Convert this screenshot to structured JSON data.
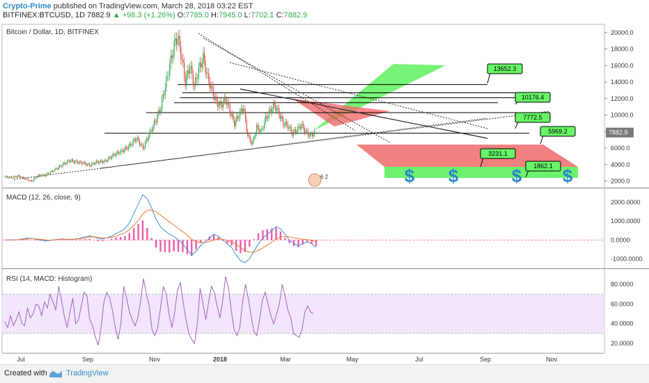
{
  "header": {
    "author": "Crypto-Prime",
    "published": "published on TradingView.com, March 28, 2018 03:22 EST",
    "symbol": "BITFINEX:BTCUSD, 1D",
    "last": "7882.9",
    "change": "+98.3 (+1.26%)",
    "open_label": "O:",
    "open": "7785.0",
    "high_label": "H:",
    "high": "7945.0",
    "low_label": "L:",
    "low": "7702.1",
    "close_label": "C:",
    "close": "7882.9"
  },
  "footer": {
    "created_with": "Created with",
    "brand": "TradingView"
  },
  "colors": {
    "up": "#2eaa4f",
    "down": "#e0463b",
    "macd": "#3f8fd8",
    "signal": "#ee7a2b",
    "hist": "#ee5aa6",
    "rsi": "#a45fbf",
    "rsi_band": "#f1e6fb",
    "green_zone": "#5ef05e",
    "red_zone": "#f06a6a"
  },
  "chart_data": [
    {
      "type": "candlestick",
      "title": "Bitcoin / Dollar, 1D, BITFINEX",
      "x_ticks": [
        "Jul",
        "Sep",
        "Nov",
        "2018",
        "Mar",
        "May",
        "Jul",
        "Sep",
        "Nov"
      ],
      "y_ticks": [
        "20000.0",
        "18000.0",
        "16000.0",
        "14000.0",
        "12000.0",
        "10000.0",
        "8000.0",
        "6000.0",
        "4000.0",
        "2000.0"
      ],
      "ylim": [
        1200,
        21000
      ],
      "last_price_label": "7882.9",
      "price_points": [
        [
          0,
          2500
        ],
        [
          6,
          2450
        ],
        [
          12,
          2600
        ],
        [
          18,
          2300
        ],
        [
          24,
          1950
        ],
        [
          30,
          2700
        ],
        [
          36,
          2700
        ],
        [
          44,
          3300
        ],
        [
          52,
          4000
        ],
        [
          58,
          4500
        ],
        [
          64,
          4300
        ],
        [
          70,
          4200
        ],
        [
          76,
          3900
        ],
        [
          82,
          4300
        ],
        [
          90,
          4400
        ],
        [
          98,
          5200
        ],
        [
          106,
          5700
        ],
        [
          112,
          6300
        ],
        [
          118,
          7200
        ],
        [
          124,
          6000
        ],
        [
          130,
          7800
        ],
        [
          136,
          9500
        ],
        [
          140,
          11000
        ],
        [
          144,
          13500
        ],
        [
          148,
          16000
        ],
        [
          152,
          18500
        ],
        [
          155,
          19500
        ],
        [
          158,
          17500
        ],
        [
          162,
          14000
        ],
        [
          166,
          16000
        ],
        [
          170,
          13500
        ],
        [
          174,
          15500
        ],
        [
          178,
          17000
        ],
        [
          182,
          14500
        ],
        [
          186,
          13000
        ],
        [
          190,
          11500
        ],
        [
          194,
          11200
        ],
        [
          198,
          12000
        ],
        [
          202,
          10500
        ],
        [
          206,
          9000
        ],
        [
          210,
          10000
        ],
        [
          214,
          11000
        ],
        [
          218,
          7500
        ],
        [
          222,
          6500
        ],
        [
          226,
          8500
        ],
        [
          230,
          8000
        ],
        [
          234,
          9500
        ],
        [
          238,
          10500
        ],
        [
          242,
          11200
        ],
        [
          246,
          10200
        ],
        [
          250,
          9000
        ],
        [
          254,
          8700
        ],
        [
          258,
          7800
        ],
        [
          262,
          8200
        ],
        [
          266,
          8800
        ],
        [
          270,
          8000
        ],
        [
          274,
          7500
        ],
        [
          278,
          7882.9
        ]
      ],
      "resistance_lines": [
        {
          "label": "13652.3",
          "value": 13652.3
        },
        {
          "label": "10176.4",
          "value": 10176.4
        },
        {
          "label": "7772.5",
          "value": 7772.5
        },
        {
          "label": "5969.2",
          "value": 5969.2
        },
        {
          "label": "3231.1",
          "value": 3231.1
        },
        {
          "label": "1862.1",
          "value": 1862.1
        }
      ],
      "horizontal_levels": [
        13700,
        12700,
        12100,
        11500,
        10300,
        7800
      ],
      "annotations": [
        "$",
        "$",
        "$",
        "$"
      ],
      "badge": "6 2"
    },
    {
      "type": "line",
      "title": "MACD (12, 26, close, 9)",
      "y_ticks": [
        "2000.0000",
        "1000.0000",
        "0.0000",
        "-1000.0000"
      ],
      "ylim": [
        -1500,
        2700
      ],
      "series": [
        {
          "values": [
            0,
            0,
            0,
            20,
            60,
            100,
            80,
            40,
            0,
            -50,
            -30,
            10,
            40,
            60,
            30,
            20,
            60,
            100,
            160,
            220,
            160,
            80,
            60,
            120,
            200,
            350,
            450,
            600,
            900,
            1400,
            1900,
            2400,
            2200,
            1700,
            1100,
            700,
            500,
            300,
            200,
            0,
            -200,
            -500,
            -800,
            -600,
            -300,
            -100,
            100,
            300,
            200,
            0,
            -200,
            -400,
            -800,
            -1100,
            -1200,
            -1000,
            -600,
            -200,
            100,
            300,
            500,
            700,
            600,
            300,
            0,
            -200,
            -300,
            -200,
            -100,
            -200,
            -400
          ]
        },
        {
          "values": [
            0,
            0,
            0,
            10,
            30,
            60,
            70,
            60,
            40,
            10,
            -10,
            0,
            20,
            40,
            40,
            35,
            45,
            70,
            110,
            160,
            170,
            140,
            110,
            110,
            140,
            210,
            290,
            390,
            540,
            770,
            1050,
            1370,
            1560,
            1600,
            1500,
            1320,
            1140,
            960,
            800,
            620,
            440,
            250,
            40,
            -100,
            -130,
            -120,
            -80,
            0,
            50,
            40,
            -20,
            -100,
            -230,
            -400,
            -560,
            -650,
            -640,
            -550,
            -420,
            -270,
            -110,
            50,
            150,
            190,
            170,
            120,
            70,
            40,
            20,
            -10,
            -80
          ]
        }
      ]
    },
    {
      "type": "line",
      "title": "RSI (14, MACD: Histogram)",
      "y_ticks": [
        "80.0000",
        "60.0000",
        "40.0000",
        "20.0000"
      ],
      "ylim": [
        10,
        95
      ],
      "band": [
        30,
        70
      ],
      "series": [
        {
          "values": [
            42,
            36,
            48,
            38,
            44,
            52,
            40,
            38,
            56,
            46,
            50,
            60,
            58,
            48,
            62,
            56,
            70,
            62,
            54,
            78,
            64,
            48,
            36,
            52,
            66,
            40,
            44,
            58,
            72,
            68,
            44,
            38,
            26,
            18,
            36,
            62,
            72,
            66,
            54,
            36,
            24,
            40,
            78,
            66,
            52,
            44,
            38,
            46,
            64,
            86,
            70,
            58,
            34,
            28,
            36,
            56,
            78,
            70,
            50,
            36,
            52,
            74,
            82,
            62,
            44,
            30,
            24,
            20,
            40,
            76,
            60,
            44,
            62,
            78,
            72,
            58,
            46,
            64,
            88,
            76,
            54,
            34,
            28,
            36,
            62,
            80,
            66,
            48,
            32,
            28,
            44,
            64,
            72,
            60,
            48,
            40,
            50,
            60,
            80,
            68,
            54,
            46,
            30,
            28,
            26,
            34,
            52,
            58,
            52,
            50
          ]
        }
      ]
    }
  ]
}
